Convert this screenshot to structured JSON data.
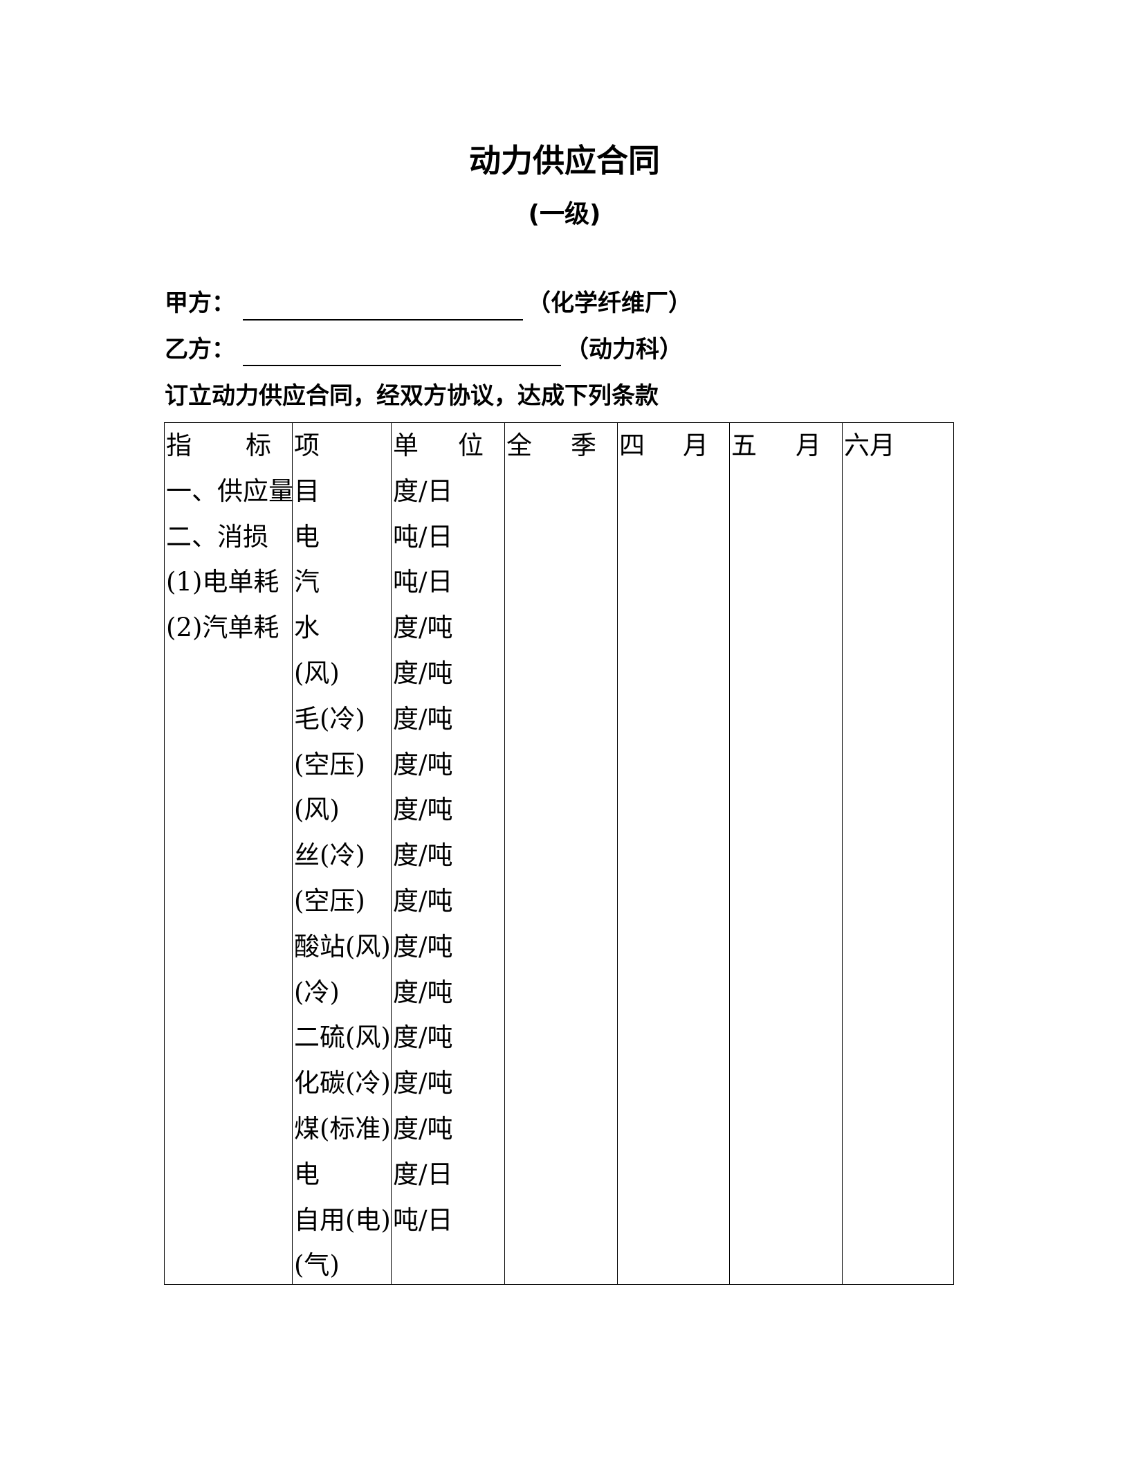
{
  "title": "动力供应合同",
  "subtitle": "(一级)",
  "party_a": {
    "label": "甲方：",
    "suffix": "（化学纤维厂）"
  },
  "party_b": {
    "label": "乙方：",
    "suffix": "（动力科）"
  },
  "intro": "订立动力供应合同，经双方协议，达成下列条款",
  "table": {
    "headers": [
      [
        "指",
        "标"
      ],
      [
        "项"
      ],
      [
        "单",
        "位"
      ],
      [
        "全",
        "季"
      ],
      [
        "四",
        "月"
      ],
      [
        "五",
        "月"
      ],
      [
        "六月"
      ]
    ],
    "col_indicator": [
      "一、供应量",
      "二、消损",
      "(1)电单耗",
      "(2)汽单耗"
    ],
    "col_item": [
      "目",
      "电",
      "汽",
      "水",
      "(风)",
      "毛(冷)",
      "(空压)",
      "(风)",
      "丝(冷)",
      "(空压)",
      "酸站(风)",
      "(冷)",
      "二硫(风)",
      "化碳(冷)",
      "煤(标准)",
      "电",
      "自用(电)",
      "(气)"
    ],
    "col_unit": [
      "度/日",
      "吨/日",
      "吨/日",
      "度/吨",
      "度/吨",
      "度/吨",
      "度/吨",
      "度/吨",
      "度/吨",
      "度/吨",
      "度/吨",
      "度/吨",
      "度/吨",
      "度/吨",
      "度/吨",
      "度/日",
      "吨/日"
    ]
  }
}
